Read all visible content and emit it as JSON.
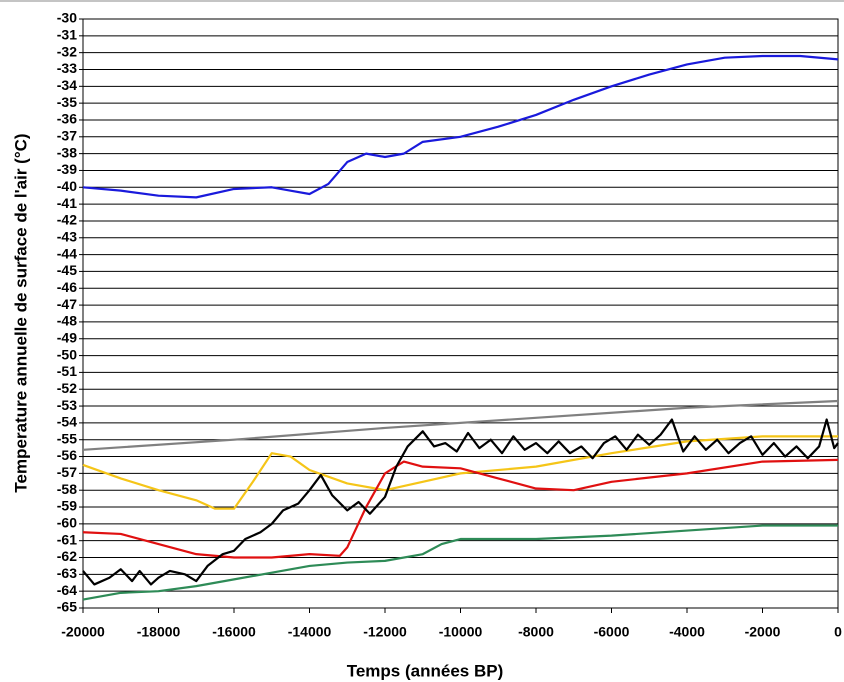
{
  "chart_data": {
    "type": "line",
    "y_label": "Temperature annuelle de surface de l'air (°C)",
    "x_label": "Temps (années BP)",
    "xlim": [
      -20000,
      0
    ],
    "xticks": [
      -20000,
      -18000,
      -16000,
      -14000,
      -12000,
      -10000,
      -8000,
      -6000,
      -4000,
      -2000,
      0
    ],
    "ylim": [
      -65,
      -30
    ],
    "yticks": [
      -30,
      -31,
      -32,
      -33,
      -34,
      -35,
      -36,
      -37,
      -38,
      -39,
      -40,
      -41,
      -42,
      -43,
      -44,
      -45,
      -46,
      -47,
      -48,
      -49,
      -50,
      -51,
      -52,
      -53,
      -54,
      -55,
      -56,
      -57,
      -58,
      -59,
      -60,
      -61,
      -62,
      -63,
      -64,
      -65
    ],
    "grid": true,
    "series": [
      {
        "color": "#1a1adc",
        "x": [
          -20000,
          -19000,
          -18000,
          -17000,
          -16000,
          -15000,
          -14500,
          -14000,
          -13500,
          -13000,
          -12500,
          -12000,
          -11500,
          -11000,
          -10000,
          -9000,
          -8000,
          -7000,
          -6000,
          -5000,
          -4000,
          -3000,
          -2000,
          -1000,
          0
        ],
        "values": [
          -40,
          -40.2,
          -40.5,
          -40.6,
          -40.1,
          -40,
          -40.2,
          -40.4,
          -39.8,
          -38.5,
          -38,
          -38.2,
          -38,
          -37.3,
          -37,
          -36.4,
          -35.7,
          -34.8,
          -34,
          -33.3,
          -32.7,
          -32.3,
          -32.2,
          -32.2,
          -32.4
        ]
      },
      {
        "color": "#808080",
        "x": [
          -20000,
          -16000,
          -12000,
          -8000,
          -4000,
          0
        ],
        "values": [
          -55.6,
          -55,
          -54.3,
          -53.7,
          -53.1,
          -52.7
        ]
      },
      {
        "color": "#f5c518",
        "x": [
          -20000,
          -19000,
          -18000,
          -17000,
          -16500,
          -16000,
          -15500,
          -15000,
          -14500,
          -14000,
          -13000,
          -12000,
          -11000,
          -10000,
          -8000,
          -6000,
          -4000,
          -2000,
          0
        ],
        "values": [
          -56.5,
          -57.3,
          -58,
          -58.6,
          -59.1,
          -59.1,
          -57.5,
          -55.8,
          -56,
          -56.8,
          -57.6,
          -58,
          -57.5,
          -57,
          -56.6,
          -55.8,
          -55.1,
          -54.8,
          -54.8
        ]
      },
      {
        "color": "#e01010",
        "x": [
          -20000,
          -19000,
          -18000,
          -17000,
          -16000,
          -15000,
          -14000,
          -13200,
          -13000,
          -12500,
          -12000,
          -11500,
          -11000,
          -10000,
          -9000,
          -8000,
          -7000,
          -6000,
          -4000,
          -2000,
          0
        ],
        "values": [
          -60.5,
          -60.6,
          -61.2,
          -61.8,
          -62,
          -62,
          -61.8,
          -61.9,
          -61.4,
          -59,
          -57,
          -56.3,
          -56.6,
          -56.7,
          -57.3,
          -57.9,
          -58,
          -57.5,
          -57,
          -56.3,
          -56.2
        ]
      },
      {
        "color": "#2e8b57",
        "x": [
          -20000,
          -19000,
          -18000,
          -17000,
          -16000,
          -15000,
          -14000,
          -13000,
          -12000,
          -11000,
          -10500,
          -10000,
          -8000,
          -6000,
          -4000,
          -2000,
          0
        ],
        "values": [
          -64.5,
          -64.1,
          -64,
          -63.7,
          -63.3,
          -62.9,
          -62.5,
          -62.3,
          -62.2,
          -61.8,
          -61.2,
          -60.9,
          -60.9,
          -60.7,
          -60.4,
          -60.1,
          -60.1
        ]
      },
      {
        "color": "#000000",
        "x": [
          -20000,
          -19700,
          -19300,
          -19000,
          -18700,
          -18500,
          -18200,
          -18000,
          -17700,
          -17300,
          -17000,
          -16700,
          -16300,
          -16000,
          -15700,
          -15300,
          -15000,
          -14700,
          -14300,
          -14000,
          -13700,
          -13400,
          -13000,
          -12700,
          -12400,
          -12000,
          -11700,
          -11400,
          -11000,
          -10700,
          -10400,
          -10100,
          -9800,
          -9500,
          -9200,
          -8900,
          -8600,
          -8300,
          -8000,
          -7700,
          -7400,
          -7100,
          -6800,
          -6500,
          -6200,
          -5900,
          -5600,
          -5300,
          -5000,
          -4700,
          -4400,
          -4100,
          -3800,
          -3500,
          -3200,
          -2900,
          -2600,
          -2300,
          -2000,
          -1700,
          -1400,
          -1100,
          -800,
          -500,
          -300,
          -100,
          0
        ],
        "values": [
          -62.8,
          -63.6,
          -63.2,
          -62.7,
          -63.4,
          -62.8,
          -63.6,
          -63.2,
          -62.8,
          -63,
          -63.4,
          -62.5,
          -61.8,
          -61.6,
          -60.9,
          -60.5,
          -60,
          -59.2,
          -58.8,
          -58,
          -57.1,
          -58.3,
          -59.2,
          -58.7,
          -59.4,
          -58.4,
          -56.6,
          -55.4,
          -54.5,
          -55.4,
          -55.2,
          -55.7,
          -54.6,
          -55.5,
          -55,
          -55.8,
          -54.8,
          -55.6,
          -55.2,
          -55.8,
          -55.1,
          -55.8,
          -55.4,
          -56.1,
          -55.2,
          -54.8,
          -55.6,
          -54.7,
          -55.3,
          -54.7,
          -53.8,
          -55.7,
          -54.8,
          -55.6,
          -55,
          -55.8,
          -55.2,
          -54.8,
          -55.9,
          -55.2,
          -56,
          -55.4,
          -56.1,
          -55.4,
          -53.8,
          -55.5,
          -55.2
        ]
      }
    ]
  }
}
